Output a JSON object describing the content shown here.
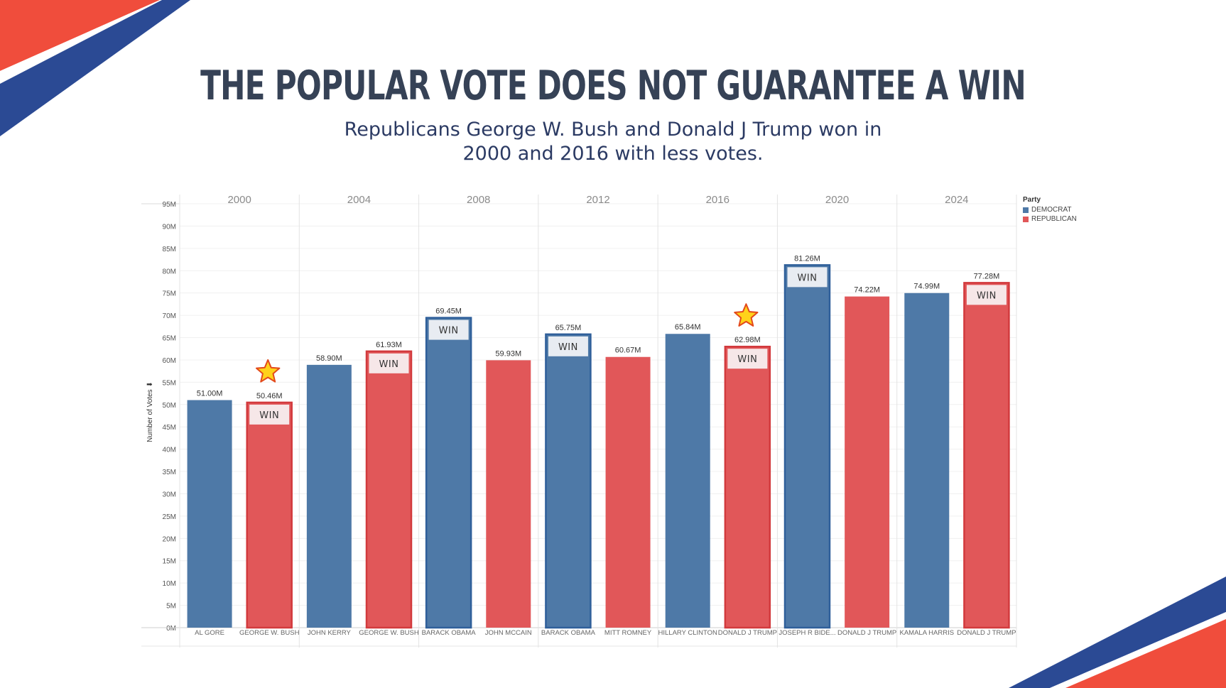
{
  "title": "THE POPULAR VOTE DOES NOT GUARANTEE A WIN",
  "subtitle_line1": "Republicans George W. Bush and Donald J Trump won in",
  "subtitle_line2": "2000 and 2016 with less votes.",
  "colors": {
    "democrat": "#4e79a7",
    "republican": "#e15759",
    "title": "#364256",
    "accent_red": "#f04d3c",
    "accent_blue": "#2b4a94"
  },
  "win_label": "WIN",
  "chart_data": {
    "type": "bar",
    "ylabel": "Number of Votes",
    "ylim": [
      0,
      95
    ],
    "yticks": [
      "0M",
      "5M",
      "10M",
      "15M",
      "20M",
      "25M",
      "30M",
      "35M",
      "40M",
      "45M",
      "50M",
      "55M",
      "60M",
      "65M",
      "70M",
      "75M",
      "80M",
      "85M",
      "90M",
      "95M"
    ],
    "years": [
      "2000",
      "2004",
      "2008",
      "2012",
      "2016",
      "2020",
      "2024"
    ],
    "legend": {
      "title": "Party",
      "entries": [
        {
          "name": "DEMOCRAT",
          "party": "dem"
        },
        {
          "name": "REPUBLICAN",
          "party": "rep"
        }
      ],
      "placement": "top-right"
    },
    "bars": [
      {
        "year": "2000",
        "candidate": "AL GORE",
        "party": "dem",
        "value": 51.0,
        "label": "51.00M",
        "win": false,
        "star": false
      },
      {
        "year": "2000",
        "candidate": "GEORGE W. BUSH",
        "party": "rep",
        "value": 50.46,
        "label": "50.46M",
        "win": true,
        "star": true
      },
      {
        "year": "2004",
        "candidate": "JOHN KERRY",
        "party": "dem",
        "value": 58.9,
        "label": "58.90M",
        "win": false,
        "star": false
      },
      {
        "year": "2004",
        "candidate": "GEORGE W. BUSH",
        "party": "rep",
        "value": 61.93,
        "label": "61.93M",
        "win": true,
        "star": false
      },
      {
        "year": "2008",
        "candidate": "BARACK OBAMA",
        "party": "dem",
        "value": 69.45,
        "label": "69.45M",
        "win": true,
        "star": false
      },
      {
        "year": "2008",
        "candidate": "JOHN MCCAIN",
        "party": "rep",
        "value": 59.93,
        "label": "59.93M",
        "win": false,
        "star": false
      },
      {
        "year": "2012",
        "candidate": "BARACK OBAMA",
        "party": "dem",
        "value": 65.75,
        "label": "65.75M",
        "win": true,
        "star": false
      },
      {
        "year": "2012",
        "candidate": "MITT ROMNEY",
        "party": "rep",
        "value": 60.67,
        "label": "60.67M",
        "win": false,
        "star": false
      },
      {
        "year": "2016",
        "candidate": "HILLARY CLINTON",
        "party": "dem",
        "value": 65.84,
        "label": "65.84M",
        "win": false,
        "star": false
      },
      {
        "year": "2016",
        "candidate": "DONALD J TRUMP",
        "party": "rep",
        "value": 62.98,
        "label": "62.98M",
        "win": true,
        "star": true
      },
      {
        "year": "2020",
        "candidate": "JOSEPH R BIDE...",
        "party": "dem",
        "value": 81.26,
        "label": "81.26M",
        "win": true,
        "star": false
      },
      {
        "year": "2020",
        "candidate": "DONALD J TRUMP",
        "party": "rep",
        "value": 74.22,
        "label": "74.22M",
        "win": false,
        "star": false
      },
      {
        "year": "2024",
        "candidate": "KAMALA HARRIS",
        "party": "dem",
        "value": 74.99,
        "label": "74.99M",
        "win": false,
        "star": false
      },
      {
        "year": "2024",
        "candidate": "DONALD J TRUMP",
        "party": "rep",
        "value": 77.28,
        "label": "77.28M",
        "win": true,
        "star": false
      }
    ]
  }
}
